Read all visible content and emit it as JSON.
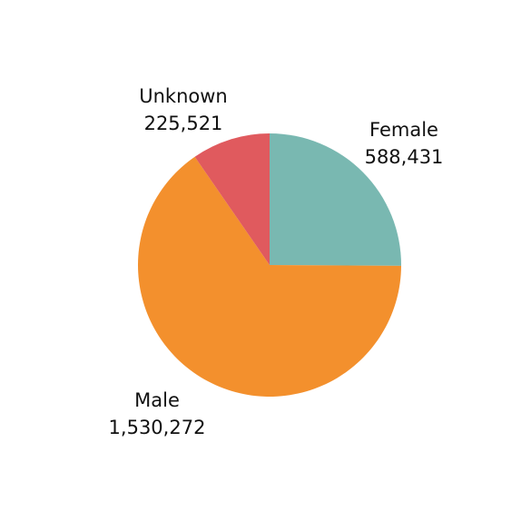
{
  "chart_data": {
    "type": "pie",
    "title": "",
    "slices": [
      {
        "label": "Female",
        "value": 588431,
        "value_text": "588,431",
        "color": "#79b8b1"
      },
      {
        "label": "Male",
        "value": 1530272,
        "value_text": "1,530,272",
        "color": "#f3902d"
      },
      {
        "label": "Unknown",
        "value": 225521,
        "value_text": "225,521",
        "color": "#e05a5e"
      }
    ],
    "start_angle": "12 o'clock",
    "direction": "clockwise",
    "legend": "none"
  }
}
